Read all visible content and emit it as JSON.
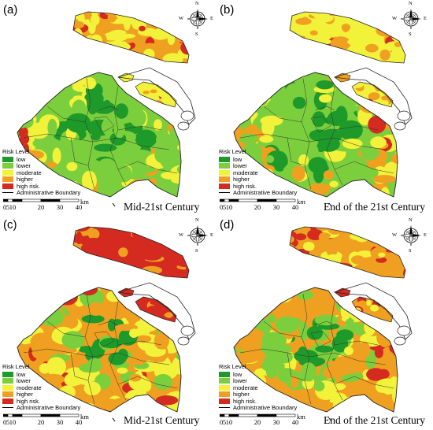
{
  "panels": [
    {
      "id": "a",
      "label": "(a)",
      "caption": "Mid-21st Century",
      "scheme": "a",
      "has_legend": true
    },
    {
      "id": "b",
      "label": "(b)",
      "caption": "End of the 21st Century",
      "scheme": "b",
      "has_legend": true
    },
    {
      "id": "c",
      "label": "(c)",
      "caption": "Mid-21st Century",
      "scheme": "c",
      "has_legend": true
    },
    {
      "id": "d",
      "label": "(d)",
      "caption": "End of the 21st Century",
      "scheme": "d",
      "has_legend": true
    }
  ],
  "legend": {
    "title": "Risk Level",
    "items": [
      {
        "label": "low",
        "color": "#1e9a2a"
      },
      {
        "label": "lower",
        "color": "#7ccf3c"
      },
      {
        "label": "moderate",
        "color": "#f2f23a"
      },
      {
        "label": "higher",
        "color": "#f0a020"
      },
      {
        "label": "high risk.",
        "color": "#d42a20"
      }
    ],
    "boundary_label": "Administrative Boundary"
  },
  "scale_bar": {
    "ticks": [
      "0",
      "5",
      "10",
      "20",
      "30",
      "40"
    ],
    "unit": "km"
  },
  "compass": {
    "n": "N",
    "s": "S",
    "e": "E",
    "w": "W"
  }
}
